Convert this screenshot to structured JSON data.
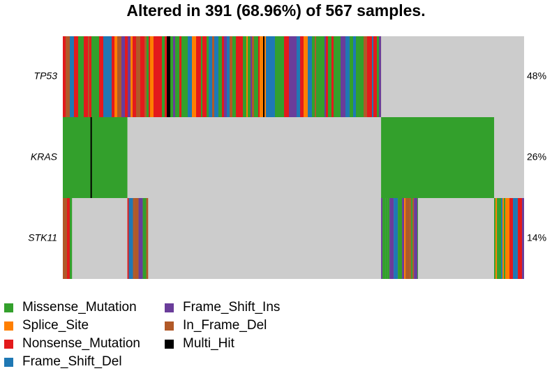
{
  "title": "Altered in 391 (68.96%) of 567 samples.",
  "chart_data": {
    "type": "heatmap",
    "title": "Altered in 391 (68.96%) of 567 samples.",
    "xlabel": "",
    "ylabel": "",
    "genes": [
      "TP53",
      "KRAS",
      "STK11"
    ],
    "gene_percent_labels": [
      "48%",
      "26%",
      "14%"
    ],
    "background_color": "#cccccc",
    "legend": [
      {
        "name": "Missense_Mutation",
        "color": "#33a02c"
      },
      {
        "name": "Splice_Site",
        "color": "#ff7f00"
      },
      {
        "name": "Nonsense_Mutation",
        "color": "#e31a1c"
      },
      {
        "name": "Frame_Shift_Del",
        "color": "#1f78b4"
      },
      {
        "name": "Frame_Shift_Ins",
        "color": "#6a3d9a"
      },
      {
        "name": "In_Frame_Del",
        "color": "#b15928"
      },
      {
        "name": "Multi_Hit",
        "color": "#000000"
      }
    ],
    "approx_sample_segments": {
      "TP53": [
        {
          "from": 0.0,
          "to": 0.69,
          "class": "mixed"
        },
        {
          "from": 0.69,
          "to": 1.0,
          "class": "none"
        }
      ],
      "KRAS": [
        {
          "from": 0.0,
          "to": 0.14,
          "class": "Missense_Mutation"
        },
        {
          "from": 0.14,
          "to": 0.69,
          "class": "none"
        },
        {
          "from": 0.69,
          "to": 0.935,
          "class": "Missense_Mutation"
        },
        {
          "from": 0.935,
          "to": 1.0,
          "class": "none"
        }
      ],
      "STK11": [
        {
          "from": 0.0,
          "to": 0.02,
          "class": "mixed"
        },
        {
          "from": 0.02,
          "to": 0.14,
          "class": "none"
        },
        {
          "from": 0.14,
          "to": 0.185,
          "class": "mixed"
        },
        {
          "from": 0.185,
          "to": 0.69,
          "class": "none"
        },
        {
          "from": 0.69,
          "to": 0.77,
          "class": "mixed"
        },
        {
          "from": 0.77,
          "to": 0.935,
          "class": "none"
        },
        {
          "from": 0.935,
          "to": 1.0,
          "class": "mixed"
        }
      ]
    }
  }
}
